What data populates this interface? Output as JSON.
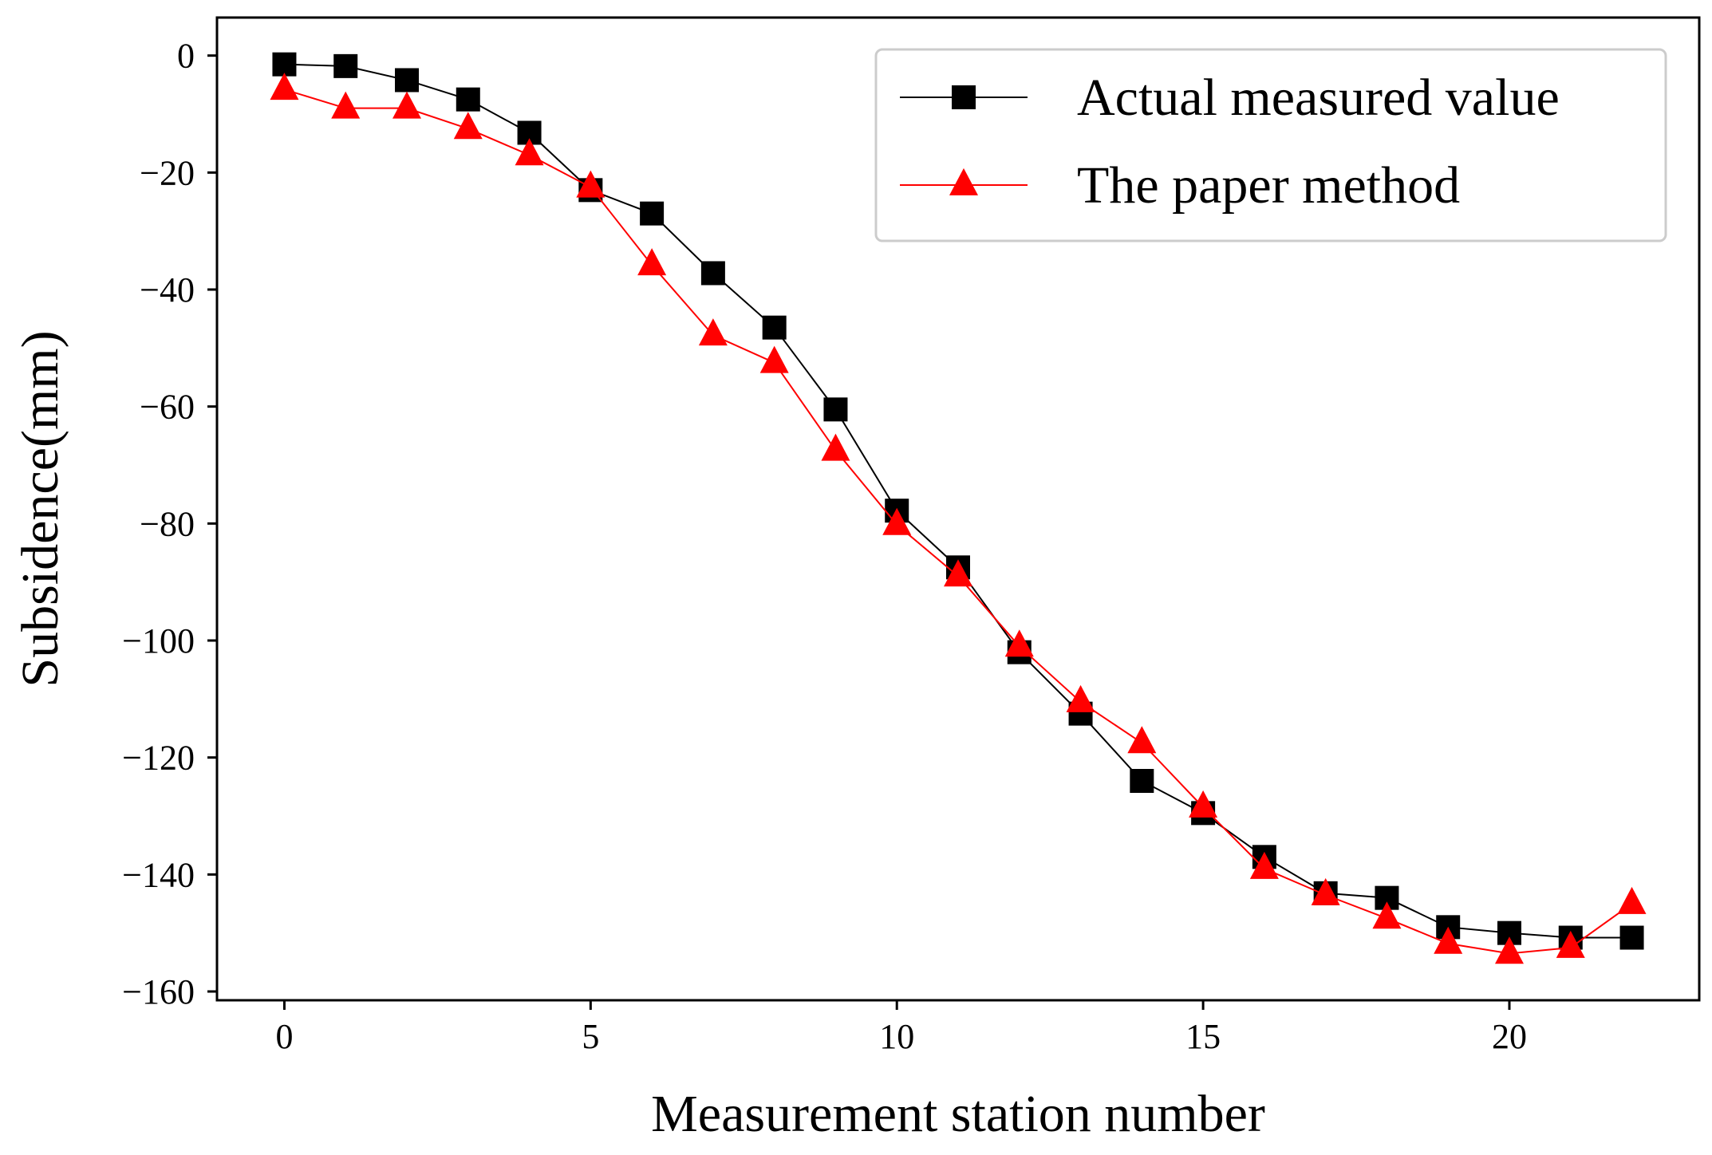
{
  "chart_data": {
    "type": "line",
    "title": "",
    "xlabel": "Measurement station number",
    "ylabel": "Subsidence(mm)",
    "xlim": [
      -1.1,
      23.1
    ],
    "ylim": [
      -161.5,
      6.5
    ],
    "xticks": [
      0,
      5,
      10,
      15,
      20
    ],
    "xtick_labels": [
      "0",
      "5",
      "10",
      "15",
      "20"
    ],
    "yticks": [
      0,
      -20,
      -40,
      -60,
      -80,
      -100,
      -120,
      -140,
      -160
    ],
    "ytick_labels": [
      "0",
      "−20",
      "−40",
      "−60",
      "−80",
      "−100",
      "−120",
      "−140",
      "−160"
    ],
    "legend_position": "top-right",
    "x": [
      0,
      1,
      2,
      3,
      4,
      5,
      6,
      7,
      8,
      9,
      10,
      11,
      12,
      13,
      14,
      15,
      16,
      17,
      18,
      19,
      20,
      21,
      22
    ],
    "series": [
      {
        "name": "Actual measured value",
        "color": "#000000",
        "marker": "square",
        "values": [
          -1.5,
          -1.8,
          -4.2,
          -7.5,
          -13.2,
          -23.0,
          -27.0,
          -37.2,
          -46.5,
          -60.5,
          -77.8,
          -87.5,
          -102.0,
          -112.5,
          -124.0,
          -129.5,
          -137.0,
          -143.2,
          -144.0,
          -149.0,
          -150.0,
          -150.8,
          -150.8
        ]
      },
      {
        "name": "The paper method",
        "color": "#ff0000",
        "marker": "triangle",
        "values": [
          -5.8,
          -9.0,
          -9.0,
          -12.5,
          -17.0,
          -22.5,
          -35.8,
          -47.8,
          -52.5,
          -67.5,
          -80.2,
          -89.0,
          -101.0,
          -110.5,
          -117.5,
          -128.5,
          -139.0,
          -143.5,
          -147.5,
          -151.8,
          -153.5,
          -152.5,
          -145.0
        ]
      }
    ]
  }
}
